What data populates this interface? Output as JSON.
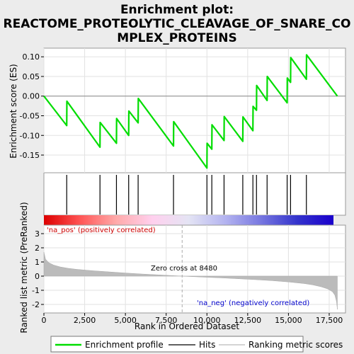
{
  "chart_data": {
    "type": "line",
    "title": "Enrichment plot: REACTOME_PROTEOLYTIC_CLEAVAGE_OF_SNARE_COMPLEX_PROTEINS",
    "title_lines": [
      "Enrichment plot:",
      "REACTOME_PROTEOLYTIC_CLEAVAGE_OF_SNARE_CO",
      "MPLEX_PROTEINS"
    ],
    "xlabel": "Rank in Ordered Dataset",
    "es_ylabel": "Enrichment score (ES)",
    "metric_ylabel": "Ranked list metric (PreRanked)",
    "xlim": [
      0,
      18500
    ],
    "es_ylim": [
      -0.195,
      0.122
    ],
    "metric_ylim": [
      -2.6,
      3.6
    ],
    "x_ticks": [
      0,
      2500,
      5000,
      7500,
      10000,
      12500,
      15000,
      17500
    ],
    "x_tick_labels": [
      "0",
      "2,500",
      "5,000",
      "7,500",
      "10,000",
      "12,500",
      "15,000",
      "17,500"
    ],
    "es_ticks": [
      -0.15,
      -0.1,
      -0.05,
      0.0,
      0.05,
      0.1
    ],
    "es_tick_labels": [
      "-0.15",
      "-0.10",
      "-0.05",
      "0.00",
      "0.05",
      "0.10"
    ],
    "metric_ticks": [
      -2,
      -1,
      0,
      1,
      2,
      3
    ],
    "metric_tick_labels": [
      "-2",
      "-1",
      "0",
      "1",
      "2",
      "3"
    ],
    "grid": true,
    "series": [
      {
        "name": "Enrichment profile",
        "color": "#00dd00",
        "x": [
          0,
          1400,
          1410,
          3440,
          3450,
          4450,
          4460,
          5200,
          5210,
          5780,
          5790,
          7950,
          7960,
          10000,
          10010,
          10300,
          10310,
          11050,
          11060,
          12200,
          12210,
          12820,
          12830,
          13040,
          13050,
          13690,
          13700,
          14920,
          14930,
          15130,
          15140,
          16100,
          16110,
          18000
        ],
        "y": [
          0.0,
          -0.075,
          -0.013,
          -0.13,
          -0.067,
          -0.12,
          -0.057,
          -0.1,
          -0.038,
          -0.068,
          -0.006,
          -0.127,
          -0.065,
          -0.183,
          -0.12,
          -0.135,
          -0.073,
          -0.113,
          -0.052,
          -0.115,
          -0.053,
          -0.088,
          -0.026,
          -0.036,
          0.027,
          -0.011,
          0.05,
          -0.017,
          0.046,
          0.035,
          0.098,
          0.043,
          0.105,
          0.0
        ]
      }
    ],
    "hits": [
      1400,
      3440,
      4450,
      5200,
      5780,
      7950,
      10000,
      10300,
      11050,
      12200,
      12820,
      13040,
      13690,
      14920,
      15130,
      16100
    ],
    "zero_cross": 8480,
    "zero_cross_label": "Zero cross at 8480",
    "pos_label": "'na_pos' (positively correlated)",
    "neg_label": "'na_neg' (negatively correlated)",
    "metric_curve": {
      "x": [
        0,
        100,
        300,
        600,
        1000,
        1500,
        2000,
        3000,
        4000,
        5000,
        6000,
        7000,
        8000,
        8480,
        9000,
        10000,
        11000,
        12000,
        13000,
        14000,
        15000,
        16000,
        16500,
        17000,
        17400,
        17700,
        17850,
        17950,
        18000
      ],
      "y": [
        1.7,
        1.2,
        0.95,
        0.78,
        0.65,
        0.55,
        0.48,
        0.38,
        0.3,
        0.22,
        0.15,
        0.09,
        0.03,
        0.0,
        -0.03,
        -0.08,
        -0.13,
        -0.19,
        -0.25,
        -0.32,
        -0.41,
        -0.53,
        -0.62,
        -0.75,
        -0.9,
        -1.1,
        -1.35,
        -1.8,
        -2.35
      ]
    },
    "heat_stops": [
      "#dd0000",
      "#ff5555",
      "#ffaaaa",
      "#ffd0ee",
      "#e4e4f4",
      "#b4b4f0",
      "#7777e0",
      "#3333cc",
      "#1a00cc"
    ],
    "legend": [
      {
        "label": "Enrichment profile",
        "color": "#00dd00"
      },
      {
        "label": "Hits",
        "color": "#000000"
      },
      {
        "label": "Ranking metric scores",
        "color": "#bbbbbb"
      }
    ]
  }
}
